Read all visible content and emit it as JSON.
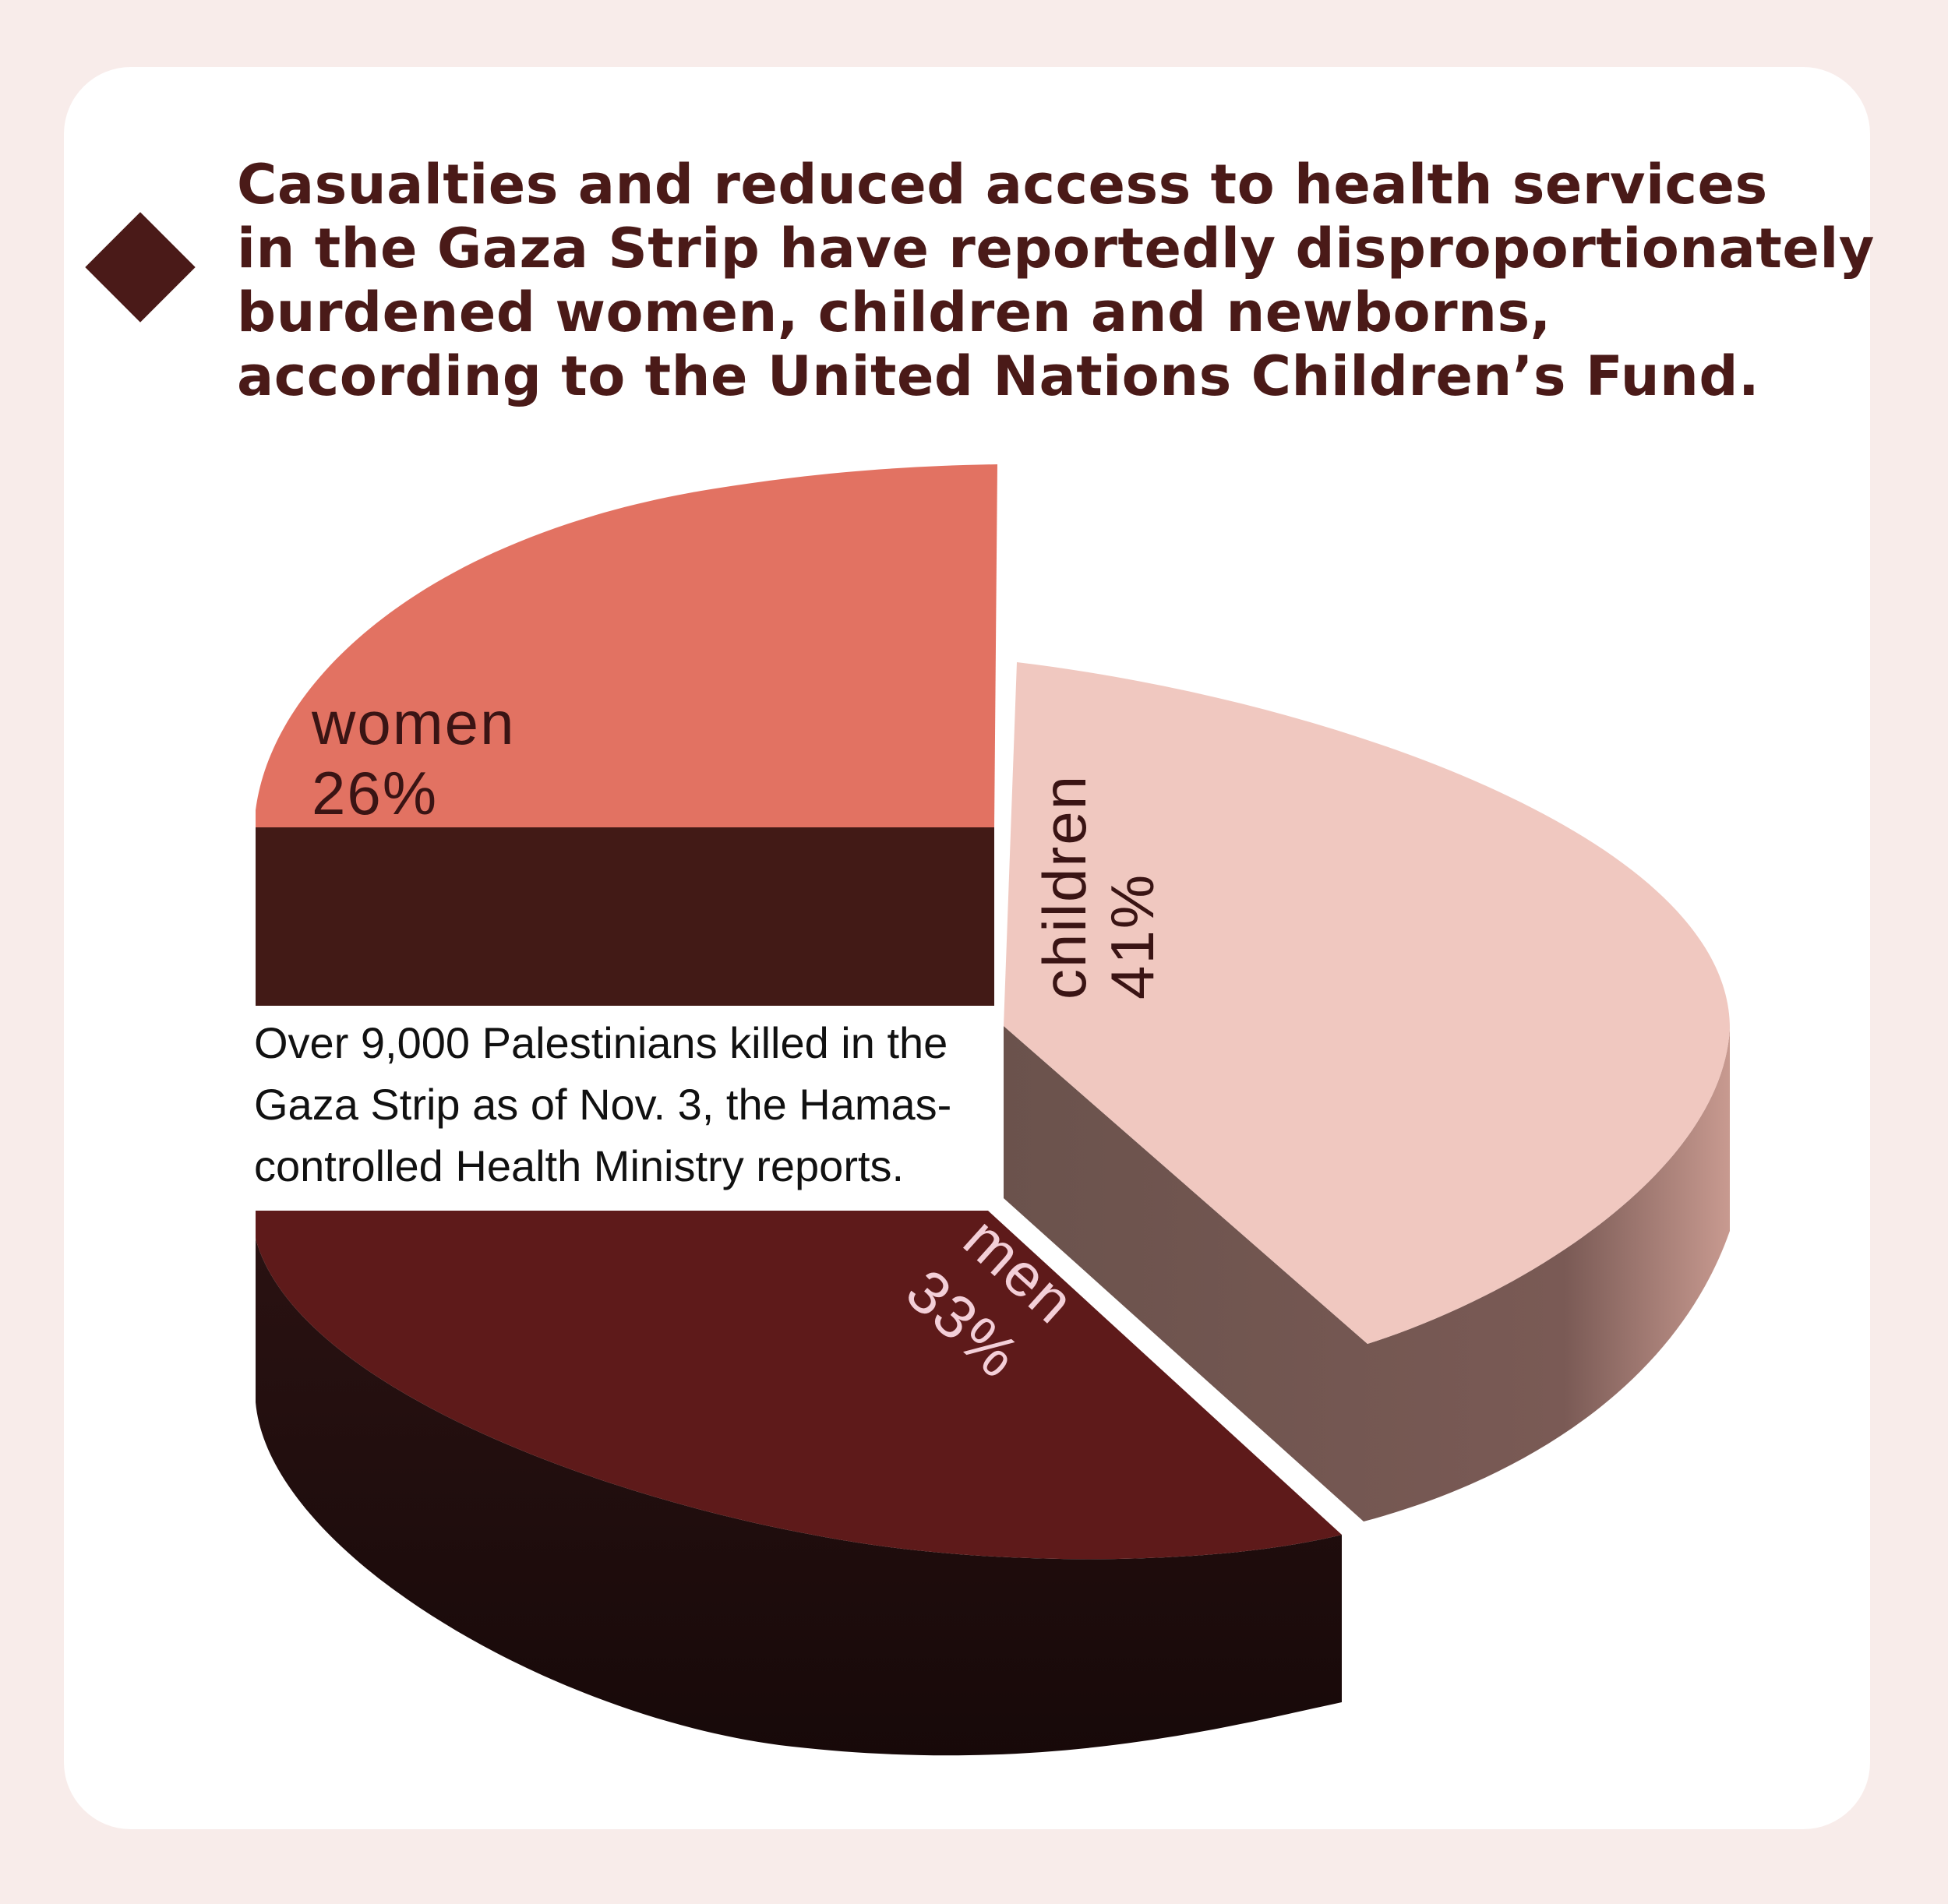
{
  "headline": "Casualties and reduced access to health services\nin the Gaza Strip have reportedly disproportionately\nburdened women, children and newborns,\naccording to the United Nations Children’s Fund.",
  "colors": {
    "background": "#f8ecea",
    "card": "#ffffff",
    "bullet": "#4a1a18",
    "women_top": "#e27262",
    "women_side": "#421a16",
    "children_top": "#f0c8c0",
    "children_side": "#6a524c",
    "men_top": "#5e1a1a",
    "men_side": "#1e0c0c",
    "label_dark": "#3a1414",
    "label_light": "#f3cfd8"
  },
  "chart_data": {
    "type": "pie",
    "title": "",
    "slices": [
      {
        "label": "women",
        "value": 26,
        "display": "26%"
      },
      {
        "label": "children",
        "value": 41,
        "display": "41%"
      },
      {
        "label": "men",
        "value": 33,
        "display": "33%"
      }
    ]
  },
  "note": {
    "lines": [
      "Over 9,000 Palestinians killed in the",
      "Gaza Strip as of Nov.  3, the Hamas-",
      "controlled Health Ministry reports."
    ]
  }
}
